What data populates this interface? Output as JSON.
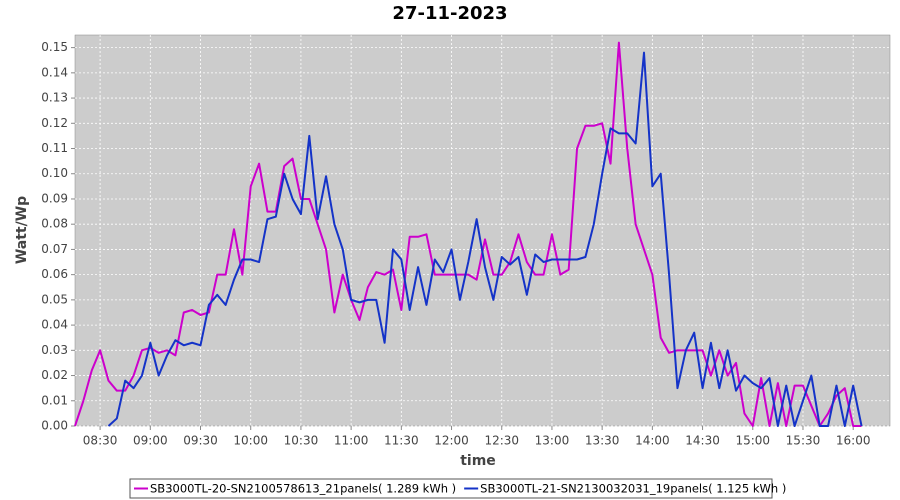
{
  "chart_data": {
    "type": "line",
    "title": "27-11-2023",
    "x_label": "time",
    "y_label": "Watt/Wp",
    "x": [
      "08:15",
      "08:20",
      "08:25",
      "08:30",
      "08:35",
      "08:40",
      "08:45",
      "08:50",
      "08:55",
      "09:00",
      "09:05",
      "09:10",
      "09:15",
      "09:20",
      "09:25",
      "09:30",
      "09:35",
      "09:40",
      "09:45",
      "09:50",
      "09:55",
      "10:00",
      "10:05",
      "10:10",
      "10:15",
      "10:20",
      "10:25",
      "10:30",
      "10:35",
      "10:40",
      "10:45",
      "10:50",
      "10:55",
      "11:00",
      "11:05",
      "11:10",
      "11:15",
      "11:20",
      "11:25",
      "11:30",
      "11:35",
      "11:40",
      "11:45",
      "11:50",
      "11:55",
      "12:00",
      "12:05",
      "12:10",
      "12:15",
      "12:20",
      "12:25",
      "12:30",
      "12:35",
      "12:40",
      "12:45",
      "12:50",
      "12:55",
      "13:00",
      "13:05",
      "13:10",
      "13:15",
      "13:20",
      "13:25",
      "13:30",
      "13:35",
      "13:40",
      "13:45",
      "13:50",
      "13:55",
      "14:00",
      "14:05",
      "14:10",
      "14:15",
      "14:20",
      "14:25",
      "14:30",
      "14:35",
      "14:40",
      "14:45",
      "14:50",
      "14:55",
      "15:00",
      "15:05",
      "15:10",
      "15:15",
      "15:20",
      "15:25",
      "15:30",
      "15:35",
      "15:40",
      "15:45",
      "15:50",
      "15:55",
      "16:00",
      "16:05"
    ],
    "series": [
      {
        "name": "SB3000TL-20-SN2100578613_21panels( 1.289 kWh )",
        "color": "#cc00cc",
        "values": [
          0,
          0.01,
          0.022,
          0.03,
          0.018,
          0.014,
          0.014,
          0.02,
          0.03,
          0.031,
          0.029,
          0.03,
          0.028,
          0.045,
          0.046,
          0.044,
          0.045,
          0.06,
          0.06,
          0.078,
          0.06,
          0.095,
          0.104,
          0.085,
          0.085,
          0.103,
          0.106,
          0.09,
          0.09,
          0.08,
          0.07,
          0.045,
          0.06,
          0.05,
          0.042,
          0.055,
          0.061,
          0.06,
          0.062,
          0.046,
          0.075,
          0.075,
          0.076,
          0.06,
          0.06,
          0.06,
          0.06,
          0.06,
          0.058,
          0.074,
          0.06,
          0.06,
          0.065,
          0.076,
          0.065,
          0.06,
          0.06,
          0.076,
          0.06,
          0.062,
          0.11,
          0.119,
          0.119,
          0.12,
          0.104,
          0.152,
          0.11,
          0.08,
          0.07,
          0.06,
          0.035,
          0.029,
          0.03,
          0.03,
          0.03,
          0.03,
          0.02,
          0.03,
          0.02,
          0.025,
          0.005,
          0,
          0.019,
          0,
          0.017,
          0,
          0.016,
          0.016,
          0.008,
          0,
          0.005,
          0.012,
          0.015,
          0,
          0
        ]
      },
      {
        "name": "SB3000TL-21-SN2130032031_19panels( 1.125 kWh )",
        "color": "#1433c8",
        "values": [
          null,
          null,
          null,
          null,
          0,
          0.003,
          0.018,
          0.015,
          0.02,
          0.033,
          0.02,
          0.028,
          0.034,
          0.032,
          0.033,
          0.032,
          0.048,
          0.052,
          0.048,
          0.058,
          0.066,
          0.066,
          0.065,
          0.082,
          0.083,
          0.1,
          0.09,
          0.084,
          0.115,
          0.082,
          0.099,
          0.08,
          0.07,
          0.05,
          0.049,
          0.05,
          0.05,
          0.033,
          0.07,
          0.066,
          0.046,
          0.063,
          0.048,
          0.066,
          0.061,
          0.07,
          0.05,
          0.065,
          0.082,
          0.063,
          0.05,
          0.067,
          0.064,
          0.067,
          0.052,
          0.068,
          0.065,
          0.066,
          0.066,
          0.066,
          0.066,
          0.067,
          0.08,
          0.1,
          0.118,
          0.116,
          0.116,
          0.112,
          0.148,
          0.095,
          0.1,
          0.06,
          0.015,
          0.03,
          0.037,
          0.015,
          0.033,
          0.015,
          0.03,
          0.014,
          0.02,
          0.017,
          0.015,
          0.019,
          0,
          0.016,
          0,
          0.01,
          0.02,
          0,
          0,
          0.016,
          0,
          0.016,
          0
        ]
      }
    ],
    "xlim": [
      "08:15",
      "16:22"
    ],
    "xticks": [
      "08:30",
      "09:00",
      "09:30",
      "10:00",
      "10:30",
      "11:00",
      "11:30",
      "12:00",
      "12:30",
      "13:00",
      "13:30",
      "14:00",
      "14:30",
      "15:00",
      "15:30",
      "16:00"
    ],
    "ylim": [
      0,
      0.155
    ],
    "yticks": [
      {
        "value": 0,
        "label": "0.00"
      },
      0.01,
      0.02,
      0.03,
      0.04,
      0.05,
      0.06,
      0.07,
      0.08,
      0.09,
      {
        "value": 0.1,
        "label": "0.10"
      },
      0.11,
      0.12,
      0.13,
      0.14,
      0.15
    ],
    "grid": true,
    "legend": "bottom"
  }
}
